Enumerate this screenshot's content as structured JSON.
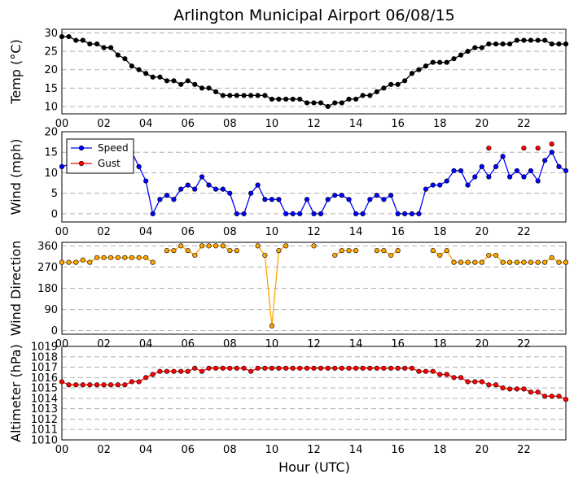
{
  "chart_data": {
    "type": "line",
    "title": "Arlington Municipal Airport 06/08/15",
    "xlabel": "Hour (UTC)",
    "x_ticks": [
      "00",
      "02",
      "04",
      "06",
      "08",
      "10",
      "12",
      "14",
      "16",
      "18",
      "20",
      "22"
    ],
    "x_tick_hours": [
      0,
      2,
      4,
      6,
      8,
      10,
      12,
      14,
      16,
      18,
      20,
      22
    ],
    "xlim": [
      0,
      24
    ],
    "colors": {
      "temp": "#000000",
      "speed": "#0000ff",
      "gust": "#ff0000",
      "direction": "#ffa500",
      "altimeter": "#ff0000"
    },
    "panels": [
      {
        "key": "temp",
        "ylabel": "Temp ($^\\circ$C)",
        "ylabel_display": "Temp (°C)",
        "ylim": [
          8,
          31
        ],
        "yticks": [
          10,
          15,
          20,
          25,
          30
        ],
        "series": [
          {
            "name": "Temp",
            "color": "#000000",
            "connect": true,
            "x": [
              0.0,
              0.33,
              0.67,
              1.0,
              1.33,
              1.67,
              2.0,
              2.33,
              2.67,
              3.0,
              3.33,
              3.67,
              4.0,
              4.33,
              4.67,
              5.0,
              5.33,
              5.67,
              6.0,
              6.33,
              6.67,
              7.0,
              7.33,
              7.67,
              8.0,
              8.33,
              8.67,
              9.0,
              9.33,
              9.67,
              10.0,
              10.33,
              10.67,
              11.0,
              11.33,
              11.67,
              12.0,
              12.33,
              12.67,
              13.0,
              13.33,
              13.67,
              14.0,
              14.33,
              14.67,
              15.0,
              15.33,
              15.67,
              16.0,
              16.33,
              16.67,
              17.0,
              17.33,
              17.67,
              18.0,
              18.33,
              18.67,
              19.0,
              19.33,
              19.67,
              20.0,
              20.33,
              20.67,
              21.0,
              21.33,
              21.67,
              22.0,
              22.33,
              22.67,
              23.0,
              23.33,
              23.67,
              24.0
            ],
            "y": [
              29,
              29,
              28,
              28,
              27,
              27,
              26,
              26,
              24,
              23,
              21,
              20,
              19,
              18,
              18,
              17,
              17,
              16,
              17,
              16,
              15,
              15,
              14,
              13,
              13,
              13,
              13,
              13,
              13,
              13,
              12,
              12,
              12,
              12,
              12,
              11,
              11,
              11,
              10,
              11,
              11,
              12,
              12,
              13,
              13,
              14,
              15,
              16,
              16,
              17,
              19,
              20,
              21,
              22,
              22,
              22,
              23,
              24,
              25,
              26,
              26,
              27,
              27,
              27,
              27,
              28,
              28,
              28,
              28,
              28,
              27,
              27,
              27
            ]
          }
        ]
      },
      {
        "key": "wind",
        "ylabel": "Wind (mph)",
        "ylim": [
          -2,
          20
        ],
        "yticks": [
          0,
          5,
          10,
          15,
          20
        ],
        "legend": {
          "position": "upper-left",
          "entries": [
            {
              "label": "Speed",
              "color": "#0000ff"
            },
            {
              "label": "Gust",
              "color": "#ff0000"
            }
          ]
        },
        "series": [
          {
            "name": "Speed",
            "color": "#0000ff",
            "connect": true,
            "x": [
              0.0,
              0.33,
              0.67,
              1.0,
              1.33,
              1.67,
              2.0,
              2.33,
              2.67,
              3.0,
              3.33,
              3.67,
              4.0,
              4.33,
              4.67,
              5.0,
              5.33,
              5.67,
              6.0,
              6.33,
              6.67,
              7.0,
              7.33,
              7.67,
              8.0,
              8.33,
              8.67,
              9.0,
              9.33,
              9.67,
              10.0,
              10.33,
              10.67,
              11.0,
              11.33,
              11.67,
              12.0,
              12.33,
              12.67,
              13.0,
              13.33,
              13.67,
              14.0,
              14.33,
              14.67,
              15.0,
              15.33,
              15.67,
              16.0,
              16.33,
              16.67,
              17.0,
              17.33,
              17.67,
              18.0,
              18.33,
              18.67,
              19.0,
              19.33,
              19.67,
              20.0,
              20.33,
              20.67,
              21.0,
              21.33,
              21.67,
              22.0,
              22.33,
              22.67,
              23.0,
              23.33,
              23.67,
              24.0
            ],
            "y": [
              11.5,
              12,
              11,
              10.5,
              11,
              12,
              10.5,
              10.5,
              10.5,
              12,
              15,
              11.5,
              8,
              0,
              3.5,
              4.5,
              3.5,
              6,
              7,
              6,
              9,
              7,
              6,
              6,
              5,
              0,
              0,
              5,
              7,
              3.5,
              3.5,
              3.5,
              0,
              0,
              0,
              3.5,
              0,
              0,
              3.5,
              4.5,
              4.5,
              3.5,
              0,
              0,
              3.5,
              4.5,
              3.5,
              4.5,
              0,
              0,
              0,
              0,
              6,
              7,
              7,
              8,
              10.5,
              10.5,
              7,
              9,
              11.5,
              9,
              11.5,
              14,
              9,
              10.5,
              9,
              10.5,
              8,
              13,
              15,
              11.5,
              10.5
            ]
          },
          {
            "name": "Gust",
            "color": "#ff0000",
            "connect": false,
            "x": [
              20.33,
              22.0,
              22.67,
              23.33
            ],
            "y": [
              16,
              16,
              16,
              17
            ]
          }
        ]
      },
      {
        "key": "direction",
        "ylabel": "Wind Direction",
        "ylim": [
          -15,
          375
        ],
        "yticks": [
          0,
          90,
          180,
          270,
          360
        ],
        "series": [
          {
            "name": "Direction",
            "color": "#ffa500",
            "connect": true,
            "x": [
              0.0,
              0.33,
              0.67,
              1.0,
              1.33,
              1.67,
              2.0,
              2.33,
              2.67,
              3.0,
              3.33,
              3.67,
              4.0,
              4.33,
              null,
              5.0,
              5.33,
              5.67,
              6.0,
              6.33,
              6.67,
              7.0,
              7.33,
              7.67,
              8.0,
              8.33,
              null,
              9.33,
              9.67,
              10.0,
              10.33,
              10.67,
              null,
              12.0,
              null,
              13.0,
              13.33,
              13.67,
              14.0,
              null,
              15.0,
              15.33,
              15.67,
              16.0,
              null,
              17.67,
              18.0,
              18.33,
              18.67,
              19.0,
              19.33,
              19.67,
              20.0,
              20.33,
              20.67,
              21.0,
              21.33,
              21.67,
              22.0,
              22.33,
              22.67,
              23.0,
              23.33,
              23.67,
              24.0
            ],
            "y": [
              290,
              290,
              290,
              300,
              290,
              310,
              310,
              310,
              310,
              310,
              310,
              310,
              310,
              290,
              null,
              340,
              340,
              360,
              340,
              320,
              360,
              360,
              360,
              360,
              340,
              340,
              null,
              360,
              320,
              20,
              340,
              360,
              null,
              360,
              null,
              320,
              340,
              340,
              340,
              null,
              340,
              340,
              320,
              340,
              null,
              340,
              320,
              340,
              290,
              290,
              290,
              290,
              290,
              320,
              320,
              290,
              290,
              290,
              290,
              290,
              290,
              290,
              310,
              290,
              290
            ]
          }
        ]
      },
      {
        "key": "altimeter",
        "ylabel": "Altimeter (hPa)",
        "ylim": [
          1010,
          1019
        ],
        "yticks": [
          1010,
          1011,
          1012,
          1013,
          1014,
          1015,
          1016,
          1017,
          1018,
          1019
        ],
        "series": [
          {
            "name": "Altimeter",
            "color": "#ff0000",
            "connect": true,
            "x": [
              0.0,
              0.33,
              0.67,
              1.0,
              1.33,
              1.67,
              2.0,
              2.33,
              2.67,
              3.0,
              3.33,
              3.67,
              4.0,
              4.33,
              4.67,
              5.0,
              5.33,
              5.67,
              6.0,
              6.33,
              6.67,
              7.0,
              7.33,
              7.67,
              8.0,
              8.33,
              8.67,
              9.0,
              9.33,
              9.67,
              10.0,
              10.33,
              10.67,
              11.0,
              11.33,
              11.67,
              12.0,
              12.33,
              12.67,
              13.0,
              13.33,
              13.67,
              14.0,
              14.33,
              14.67,
              15.0,
              15.33,
              15.67,
              16.0,
              16.33,
              16.67,
              17.0,
              17.33,
              17.67,
              18.0,
              18.33,
              18.67,
              19.0,
              19.33,
              19.67,
              20.0,
              20.33,
              20.67,
              21.0,
              21.33,
              21.67,
              22.0,
              22.33,
              22.67,
              23.0,
              23.33,
              23.67,
              24.0
            ],
            "y": [
              1015.6,
              1015.3,
              1015.3,
              1015.3,
              1015.3,
              1015.3,
              1015.3,
              1015.3,
              1015.3,
              1015.3,
              1015.6,
              1015.6,
              1016,
              1016.3,
              1016.6,
              1016.6,
              1016.6,
              1016.6,
              1016.6,
              1016.9,
              1016.6,
              1016.9,
              1016.9,
              1016.9,
              1016.9,
              1016.9,
              1016.9,
              1016.6,
              1016.9,
              1016.9,
              1016.9,
              1016.9,
              1016.9,
              1016.9,
              1016.9,
              1016.9,
              1016.9,
              1016.9,
              1016.9,
              1016.9,
              1016.9,
              1016.9,
              1016.9,
              1016.9,
              1016.9,
              1016.9,
              1016.9,
              1016.9,
              1016.9,
              1016.9,
              1016.9,
              1016.6,
              1016.6,
              1016.6,
              1016.3,
              1016.3,
              1016,
              1016,
              1015.6,
              1015.6,
              1015.6,
              1015.3,
              1015.3,
              1015,
              1014.9,
              1014.9,
              1014.9,
              1014.6,
              1014.6,
              1014.2,
              1014.2,
              1014.2,
              1013.9
            ]
          }
        ]
      }
    ]
  }
}
